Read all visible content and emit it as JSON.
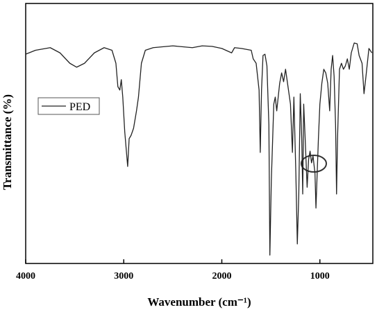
{
  "chart_data": {
    "type": "line",
    "xlabel": "Wavenumber (cm⁻¹)",
    "ylabel": "Transmittance (%)",
    "xlim": [
      4000,
      460
    ],
    "ylim": [
      0,
      100
    ],
    "xticks": [
      4000,
      3000,
      2000,
      1000
    ],
    "x": [
      4000,
      3900,
      3750,
      3650,
      3550,
      3480,
      3400,
      3300,
      3200,
      3120,
      3080,
      3060,
      3040,
      3025,
      3010,
      2990,
      2960,
      2945,
      2925,
      2900,
      2870,
      2850,
      2820,
      2780,
      2700,
      2500,
      2300,
      2200,
      2100,
      2000,
      1900,
      1870,
      1800,
      1700,
      1680,
      1650,
      1620,
      1608,
      1595,
      1580,
      1560,
      1540,
      1520,
      1510,
      1495,
      1470,
      1455,
      1440,
      1410,
      1390,
      1370,
      1350,
      1330,
      1300,
      1280,
      1265,
      1245,
      1230,
      1215,
      1200,
      1185,
      1175,
      1165,
      1150,
      1130,
      1115,
      1100,
      1085,
      1070,
      1050,
      1040,
      1030,
      1015,
      1000,
      980,
      960,
      940,
      920,
      900,
      885,
      870,
      855,
      840,
      830,
      820,
      800,
      780,
      760,
      740,
      720,
      700,
      680,
      650,
      620,
      600,
      570,
      550,
      530,
      500,
      470
    ],
    "series": [
      {
        "name": "PED",
        "color": "#222222",
        "values": [
          80.5,
          82,
          83,
          81,
          77,
          75.5,
          77,
          81,
          83,
          82,
          77,
          68,
          66.7,
          70.7,
          64,
          50.7,
          37.3,
          48,
          49.3,
          52,
          58.7,
          64,
          77,
          82,
          83,
          83.7,
          83,
          83.7,
          83.5,
          82.7,
          81,
          83,
          82.7,
          82,
          78.7,
          77,
          66.7,
          42.7,
          66.7,
          80,
          80.5,
          76,
          53.3,
          3.2,
          32,
          61.3,
          64,
          58.7,
          69.3,
          73.3,
          69.9,
          74.7,
          69.3,
          61.3,
          42.7,
          64,
          34.7,
          7.5,
          26.7,
          65.3,
          48,
          26.7,
          61.3,
          48,
          29.3,
          40,
          43.2,
          38.7,
          41.3,
          34.7,
          21.3,
          32,
          48,
          61.3,
          69.3,
          74.7,
          73.3,
          69.3,
          58.7,
          74.7,
          80,
          72,
          53.3,
          26.7,
          48,
          74.7,
          77,
          74.7,
          76,
          78.7,
          74.7,
          81,
          84.8,
          84.5,
          80,
          77,
          65.3,
          72,
          82.7,
          81
        ]
      }
    ]
  }
}
